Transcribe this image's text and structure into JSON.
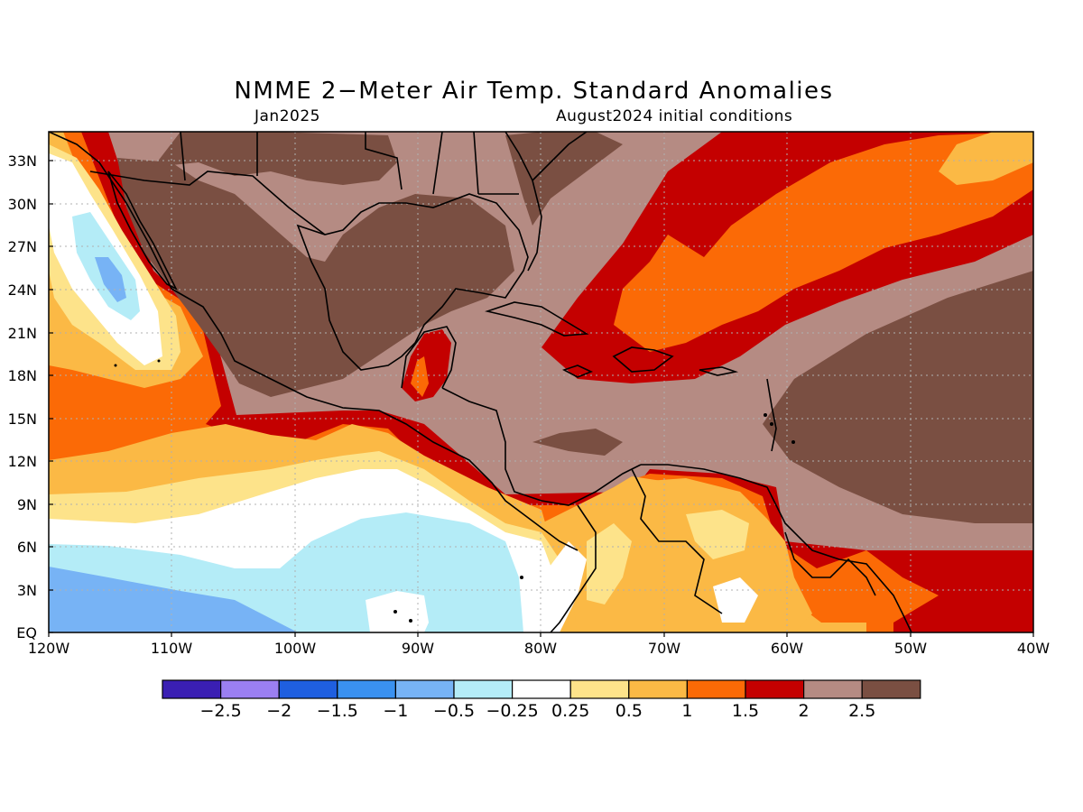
{
  "title": "NMME 2−Meter Air Temp. Standard Anomalies",
  "valid_month": "Jan2025",
  "initial_conditions": "August2024 initial conditions",
  "lat_labels": [
    "EQ",
    "3N",
    "6N",
    "9N",
    "12N",
    "15N",
    "18N",
    "21N",
    "24N",
    "27N",
    "30N",
    "33N"
  ],
  "lon_labels": [
    "120W",
    "110W",
    "100W",
    "90W",
    "80W",
    "70W",
    "60W",
    "50W",
    "40W"
  ],
  "colorbar": {
    "labels": [
      "−2.5",
      "−2",
      "−1.5",
      "−1",
      "−0.5",
      "−0.25",
      "0.25",
      "0.5",
      "1",
      "1.5",
      "2",
      "2.5"
    ],
    "colors": [
      "#3a1fb3",
      "#9b7ff2",
      "#1f5fe0",
      "#3a91f0",
      "#77b3f5",
      "#b4ecf7",
      "#ffffff",
      "#fde38a",
      "#fbb945",
      "#fb6a06",
      "#c40000",
      "#b58b83",
      "#7a4f42"
    ]
  },
  "colors": {
    "anom_gt_2_5": "#7a4f42",
    "anom_2_2_5": "#b58b83",
    "anom_1_5_2": "#c40000",
    "anom_1_1_5": "#fb6a06",
    "anom_0_5_1": "#fbb945",
    "anom_0_25_0_5": "#fde38a",
    "near_normal": "#ffffff",
    "anom_m0_25_m0_5": "#b4ecf7",
    "anom_m0_5_m1": "#77b3f5",
    "coastline": "#000000",
    "grid": "#b0b0b0"
  }
}
